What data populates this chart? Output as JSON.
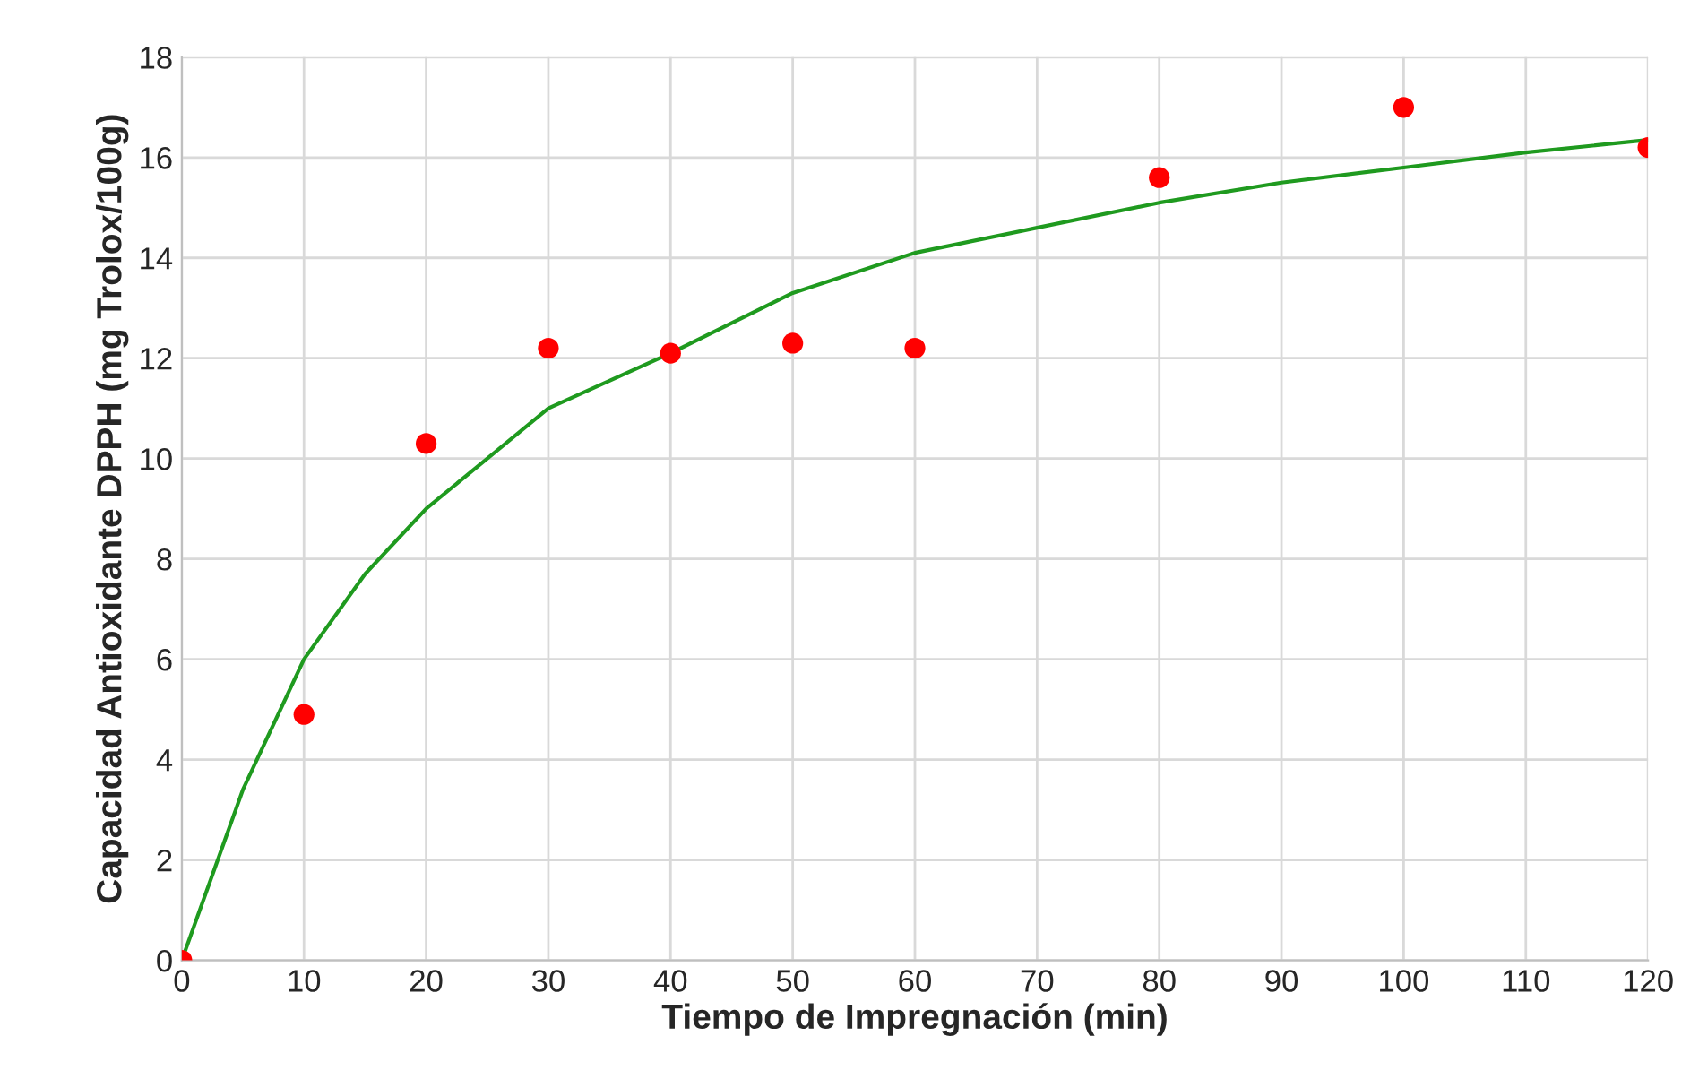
{
  "chart_data": {
    "type": "scatter",
    "xlabel": "Tiempo de Impregnación (min)",
    "ylabel": "Capacidad Antioxidante DPPH (mg Trolox/100g)",
    "series": [
      {
        "color": "#ff0000",
        "marker": "circle",
        "x": [
          0,
          10,
          20,
          30,
          40,
          50,
          60,
          80,
          100,
          120
        ],
        "values": [
          0,
          4.9,
          10.3,
          12.2,
          12.1,
          12.3,
          12.2,
          15.6,
          17.0,
          16.2
        ]
      },
      {
        "type": "line",
        "color": "#1f9a1f",
        "marker": "none",
        "line_style": "solid",
        "x": [
          0,
          5,
          10,
          15,
          20,
          30,
          40,
          50,
          60,
          70,
          80,
          90,
          100,
          110,
          120
        ],
        "values": [
          0,
          3.4,
          6.0,
          7.7,
          9.0,
          11.0,
          12.1,
          13.3,
          14.1,
          14.6,
          15.1,
          15.5,
          15.8,
          16.1,
          16.35
        ]
      }
    ],
    "xlim": [
      0,
      120
    ],
    "xticks": [
      0,
      10,
      20,
      30,
      40,
      50,
      60,
      70,
      80,
      90,
      100,
      110,
      120
    ],
    "ylim": [
      0,
      18
    ],
    "yticks": [
      0,
      2,
      4,
      6,
      8,
      10,
      12,
      14,
      16,
      18
    ],
    "grid": true
  }
}
